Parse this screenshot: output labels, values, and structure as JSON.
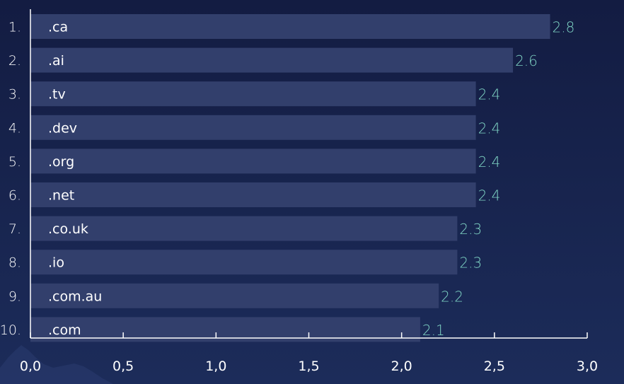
{
  "chart_data": {
    "type": "bar",
    "orientation": "horizontal",
    "ranks": [
      "1.",
      "2.",
      "3.",
      "4.",
      "5.",
      "6.",
      "7.",
      "8.",
      "9.",
      "10."
    ],
    "categories": [
      ".ca",
      ".ai",
      ".tv",
      ".dev",
      ".org",
      ".net",
      ".co.uk",
      ".io",
      ".com.au",
      ".com"
    ],
    "values": [
      2.8,
      2.6,
      2.4,
      2.4,
      2.4,
      2.4,
      2.3,
      2.3,
      2.2,
      2.1
    ],
    "value_labels": [
      "2.8",
      "2.6",
      "2.4",
      "2.4",
      "2.4",
      "2.4",
      "2.3",
      "2.3",
      "2.2",
      "2.1"
    ],
    "xlim": [
      0,
      3
    ],
    "x_ticks": [
      0,
      0.5,
      1,
      1.5,
      2,
      2.5,
      3
    ],
    "x_tick_labels": [
      "0,0",
      "0,5",
      "1,0",
      "1,5",
      "2,0",
      "2,5",
      "3,0"
    ],
    "grid": false,
    "title": "",
    "xlabel": "",
    "ylabel": ""
  },
  "colors": {
    "background_top": "#131c42",
    "background_bottom": "#1c2c5a",
    "bar": "#323f6c",
    "value_label": "#7fd4c4",
    "text": "#ffffff",
    "axis": "#ffffff",
    "mountain": "#2a3a6e"
  }
}
